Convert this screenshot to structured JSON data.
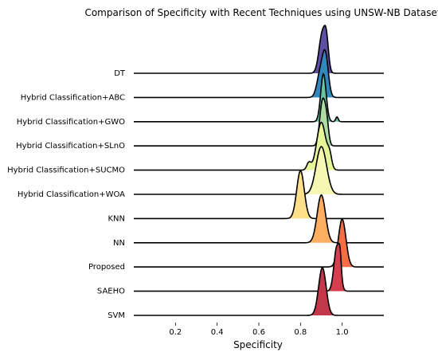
{
  "chart_data": {
    "type": "ridgeline",
    "title": "Comparison of Specificity with Recent Techniques using UNSW-NB Dataset",
    "xlabel": "Specificity",
    "ylabel": "",
    "xlim": [
      0.0,
      1.2
    ],
    "x_ticks": [
      0.2,
      0.4,
      0.6,
      0.8,
      1.0
    ],
    "x_tick_labels": [
      "0.2",
      "0.4",
      "0.6",
      "0.8",
      "1.0"
    ],
    "grid": false,
    "colormap": "Spectral_r",
    "series": [
      {
        "name": "DT",
        "color": "#5e4fa2",
        "peaks": [
          {
            "mu": 0.905,
            "sigma": 0.016
          },
          {
            "mu": 0.925,
            "sigma": 0.01,
            "w": 0.6
          }
        ]
      },
      {
        "name": "Hybrid Classification+ABC",
        "color": "#3288bd",
        "peaks": [
          {
            "mu": 0.92,
            "sigma": 0.014
          },
          {
            "mu": 0.895,
            "sigma": 0.016,
            "w": 0.6
          }
        ]
      },
      {
        "name": "Hybrid Classification+GWO",
        "color": "#66c2a5",
        "peaks": [
          {
            "mu": 0.91,
            "sigma": 0.013
          },
          {
            "mu": 0.975,
            "sigma": 0.006,
            "w": 0.1
          }
        ]
      },
      {
        "name": "Hybrid Classification+SLnO",
        "color": "#abdda4",
        "peaks": [
          {
            "mu": 0.905,
            "sigma": 0.013
          },
          {
            "mu": 0.925,
            "sigma": 0.01,
            "w": 0.5
          }
        ]
      },
      {
        "name": "Hybrid Classification+SUCMO",
        "color": "#e6f598",
        "peaks": [
          {
            "mu": 0.9,
            "sigma": 0.022
          },
          {
            "mu": 0.84,
            "sigma": 0.01,
            "w": 0.15
          },
          {
            "mu": 0.94,
            "sigma": 0.01,
            "w": 0.25
          }
        ]
      },
      {
        "name": "Hybrid Classification+WOA",
        "color": "#f6f7b2",
        "peaks": [
          {
            "mu": 0.9,
            "sigma": 0.025
          }
        ]
      },
      {
        "name": "KNN",
        "color": "#fee08b",
        "peaks": [
          {
            "mu": 0.8,
            "sigma": 0.018
          }
        ]
      },
      {
        "name": "NN",
        "color": "#fdae61",
        "peaks": [
          {
            "mu": 0.9,
            "sigma": 0.02
          }
        ]
      },
      {
        "name": "Proposed",
        "color": "#f46d43",
        "peaks": [
          {
            "mu": 1.0,
            "sigma": 0.018
          }
        ]
      },
      {
        "name": "SAEHO",
        "color": "#d53e4f",
        "peaks": [
          {
            "mu": 0.975,
            "sigma": 0.014
          },
          {
            "mu": 0.99,
            "sigma": 0.006,
            "w": 0.4
          }
        ]
      },
      {
        "name": "SVM",
        "color": "#c2374a",
        "peaks": [
          {
            "mu": 0.905,
            "sigma": 0.018
          }
        ]
      }
    ]
  }
}
